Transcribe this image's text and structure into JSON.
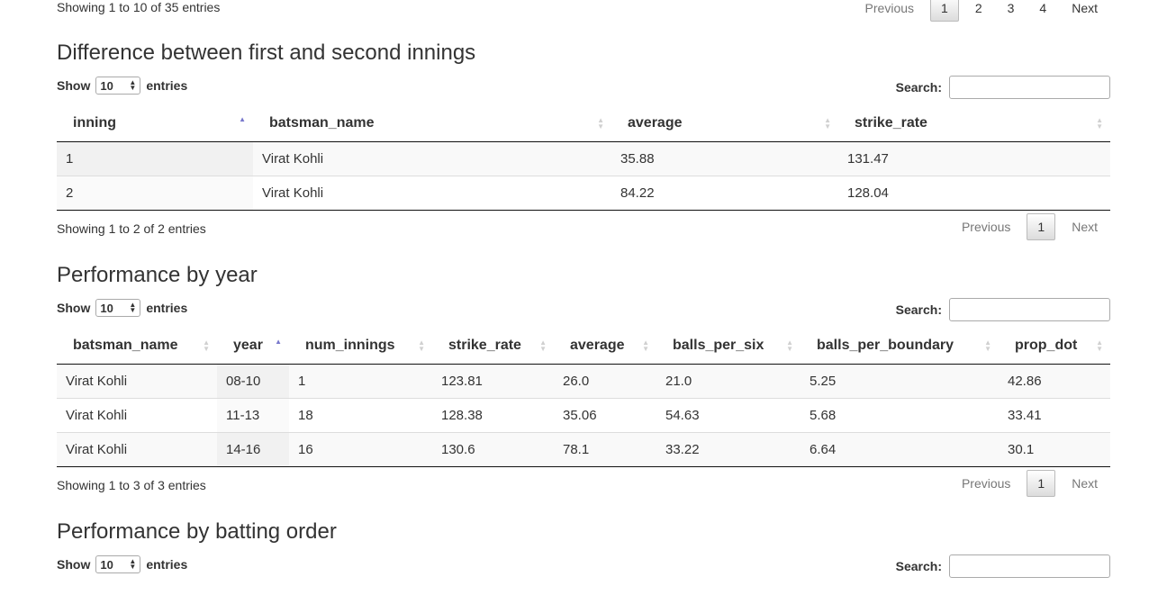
{
  "top": {
    "info": "Showing 1 to 10 of 35 entries",
    "pager": {
      "previous": "Previous",
      "pages": [
        "1",
        "2",
        "3",
        "4"
      ],
      "next": "Next"
    }
  },
  "innings": {
    "title": "Difference between first and second innings",
    "show_label": "Show",
    "entries_label": "entries",
    "length_value": "10",
    "search_label": "Search:",
    "search_value": "",
    "columns": [
      "inning",
      "batsman_name",
      "average",
      "strike_rate"
    ],
    "rows": [
      [
        "1",
        "Virat Kohli",
        "35.88",
        "131.47"
      ],
      [
        "2",
        "Virat Kohli",
        "84.22",
        "128.04"
      ]
    ],
    "info": "Showing 1 to 2 of 2 entries",
    "pager": {
      "previous": "Previous",
      "page": "1",
      "next": "Next"
    }
  },
  "year": {
    "title": "Performance by year",
    "show_label": "Show",
    "entries_label": "entries",
    "length_value": "10",
    "search_label": "Search:",
    "search_value": "",
    "columns": [
      "batsman_name",
      "year",
      "num_innings",
      "strike_rate",
      "average",
      "balls_per_six",
      "balls_per_boundary",
      "prop_dot"
    ],
    "rows": [
      [
        "Virat Kohli",
        "08-10",
        "1",
        "123.81",
        "26.0",
        "21.0",
        "5.25",
        "42.86"
      ],
      [
        "Virat Kohli",
        "11-13",
        "18",
        "128.38",
        "35.06",
        "54.63",
        "5.68",
        "33.41"
      ],
      [
        "Virat Kohli",
        "14-16",
        "16",
        "130.6",
        "78.1",
        "33.22",
        "6.64",
        "30.1"
      ]
    ],
    "info": "Showing 1 to 3 of 3 entries",
    "pager": {
      "previous": "Previous",
      "page": "1",
      "next": "Next"
    }
  },
  "order": {
    "title": "Performance by batting order",
    "show_label": "Show",
    "entries_label": "entries",
    "length_value": "10",
    "search_label": "Search:",
    "search_value": ""
  }
}
